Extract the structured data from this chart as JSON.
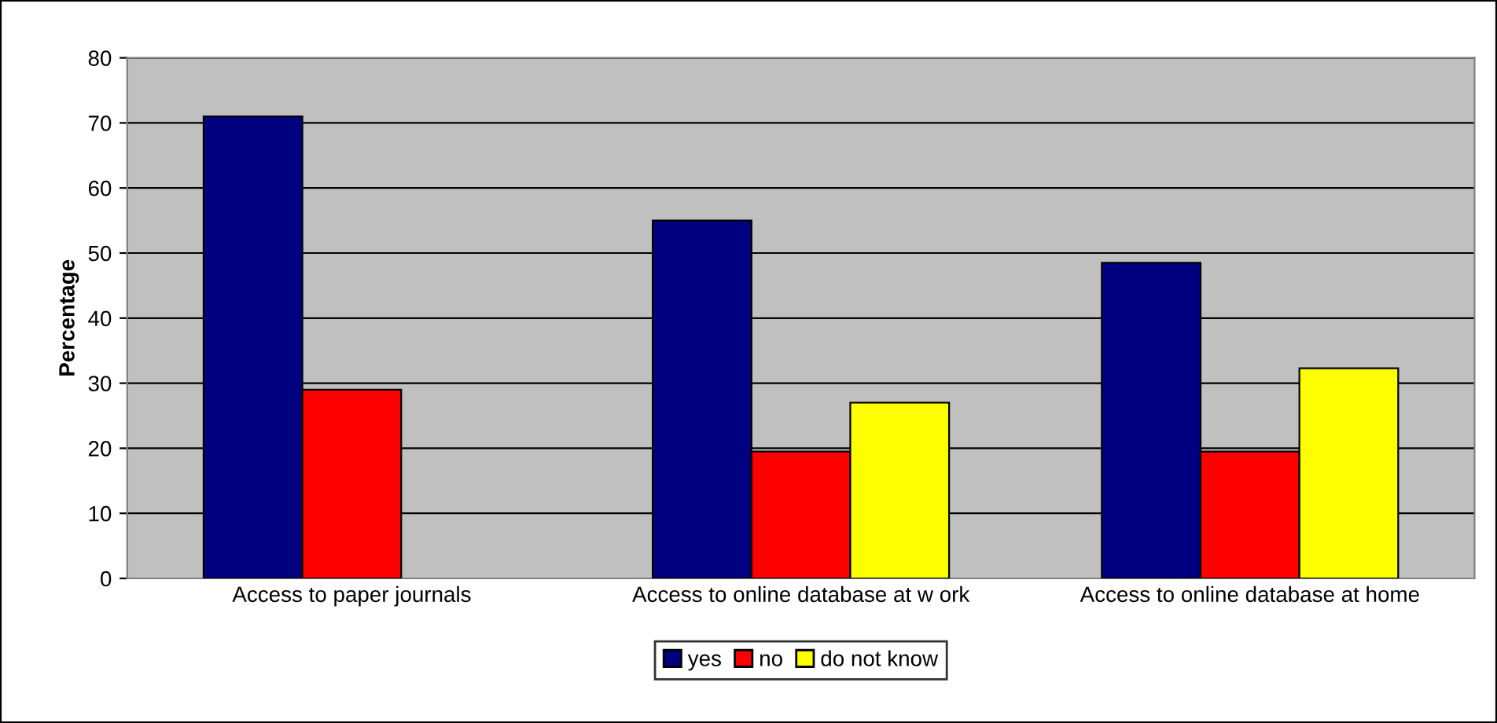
{
  "chart_data": {
    "type": "bar",
    "ylabel": "Percentage",
    "categories": [
      "Access to paper journals",
      "Access to online database at w ork",
      "Access to online database at home"
    ],
    "series": [
      {
        "name": "yes",
        "color": "#000080",
        "values": [
          71,
          55,
          48.5
        ]
      },
      {
        "name": "no",
        "color": "#ff0000",
        "values": [
          29,
          19.5,
          19.5
        ]
      },
      {
        "name": "do not know",
        "color": "#ffff00",
        "values": [
          null,
          27,
          32.3
        ]
      }
    ],
    "ylim": [
      0,
      80
    ],
    "yticks": [
      0,
      10,
      20,
      30,
      40,
      50,
      60,
      70,
      80
    ],
    "grid": "y",
    "legend": "bottom"
  }
}
